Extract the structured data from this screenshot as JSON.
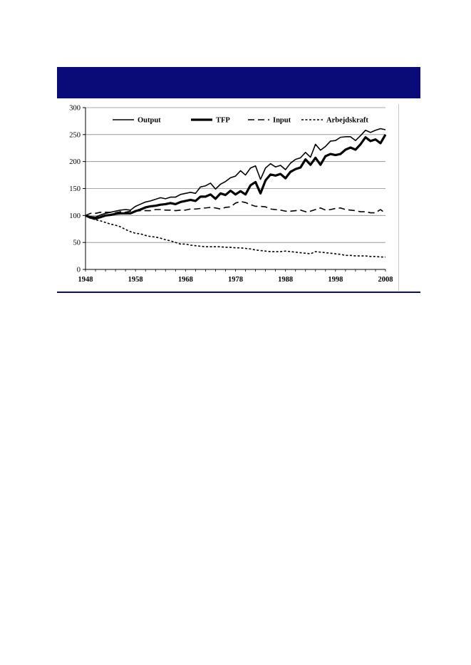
{
  "chart_data": {
    "type": "line",
    "title": "",
    "xlabel": "",
    "ylabel": "",
    "xlim": [
      1948,
      2008
    ],
    "ylim": [
      0,
      300
    ],
    "grid": true,
    "legend_position": "top",
    "x_ticks": [
      1948,
      1958,
      1968,
      1978,
      1988,
      1998,
      2008
    ],
    "y_ticks": [
      0,
      50,
      100,
      150,
      200,
      250,
      300
    ],
    "x": [
      1948,
      1949,
      1950,
      1951,
      1952,
      1953,
      1954,
      1955,
      1956,
      1957,
      1958,
      1959,
      1960,
      1961,
      1962,
      1963,
      1964,
      1965,
      1966,
      1967,
      1968,
      1969,
      1970,
      1971,
      1972,
      1973,
      1974,
      1975,
      1976,
      1977,
      1978,
      1979,
      1980,
      1981,
      1982,
      1983,
      1984,
      1985,
      1986,
      1987,
      1988,
      1989,
      1990,
      1991,
      1992,
      1993,
      1994,
      1995,
      1996,
      1997,
      1998,
      1999,
      2000,
      2001,
      2002,
      2003,
      2004,
      2005,
      2006,
      2007,
      2008
    ],
    "series": [
      {
        "name": "Output",
        "style": "solid-thin",
        "values": [
          100,
          98,
          97,
          101,
          104,
          106,
          108,
          110,
          111,
          110,
          117,
          121,
          125,
          127,
          130,
          133,
          131,
          134,
          134,
          139,
          141,
          143,
          141,
          153,
          155,
          160,
          149,
          158,
          163,
          170,
          173,
          183,
          175,
          188,
          192,
          167,
          188,
          196,
          190,
          193,
          185,
          197,
          204,
          207,
          217,
          208,
          232,
          221,
          228,
          238,
          239,
          245,
          246,
          246,
          239,
          248,
          258,
          254,
          258,
          261,
          259
        ]
      },
      {
        "name": "TFP",
        "style": "solid-thick",
        "values": [
          100,
          96,
          94,
          97,
          100,
          101,
          103,
          104,
          104,
          104,
          108,
          111,
          115,
          117,
          118,
          120,
          121,
          123,
          121,
          125,
          127,
          129,
          127,
          135,
          135,
          139,
          131,
          141,
          138,
          146,
          139,
          145,
          139,
          156,
          162,
          141,
          165,
          176,
          174,
          177,
          169,
          181,
          186,
          189,
          204,
          194,
          207,
          194,
          210,
          214,
          212,
          214,
          222,
          226,
          222,
          232,
          245,
          238,
          241,
          234,
          250
        ]
      },
      {
        "name": "Input",
        "style": "long-dash",
        "values": [
          100,
          104,
          104,
          106,
          106,
          106,
          105,
          107,
          106,
          108,
          108,
          109,
          109,
          109,
          111,
          111,
          110,
          110,
          109,
          110,
          110,
          112,
          112,
          113,
          114,
          115,
          114,
          112,
          115,
          116,
          123,
          126,
          124,
          120,
          117,
          117,
          116,
          112,
          111,
          110,
          108,
          108,
          109,
          110,
          107,
          108,
          111,
          114,
          110,
          111,
          113,
          114,
          111,
          110,
          109,
          107,
          107,
          105,
          105,
          111,
          104
        ]
      },
      {
        "name": "Arbejdskraft",
        "style": "short-dash",
        "values": [
          100,
          95,
          92,
          90,
          87,
          84,
          82,
          79,
          74,
          70,
          67,
          66,
          63,
          61,
          60,
          58,
          55,
          53,
          50,
          47,
          47,
          45,
          44,
          43,
          42,
          42,
          42,
          42,
          41,
          41,
          40,
          40,
          39,
          38,
          36,
          35,
          34,
          33,
          33,
          33,
          34,
          33,
          32,
          31,
          30,
          29,
          33,
          32,
          31,
          30,
          29,
          28,
          26,
          26,
          25,
          25,
          25,
          24,
          24,
          23,
          23
        ]
      }
    ]
  }
}
